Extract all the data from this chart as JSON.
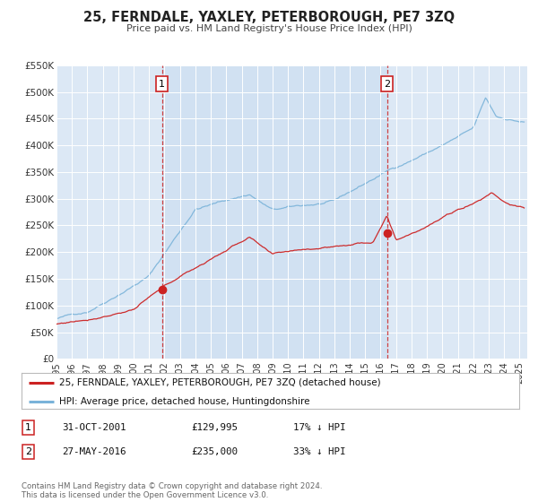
{
  "title": "25, FERNDALE, YAXLEY, PETERBOROUGH, PE7 3ZQ",
  "subtitle": "Price paid vs. HM Land Registry's House Price Index (HPI)",
  "hpi_color": "#7ab3d9",
  "price_color": "#cc2222",
  "vline_color": "#cc2222",
  "plot_bg": "#dce8f5",
  "fig_bg": "#ffffff",
  "ylim": [
    0,
    550000
  ],
  "yticks": [
    0,
    50000,
    100000,
    150000,
    200000,
    250000,
    300000,
    350000,
    400000,
    450000,
    500000,
    550000
  ],
  "ytick_labels": [
    "£0",
    "£50K",
    "£100K",
    "£150K",
    "£200K",
    "£250K",
    "£300K",
    "£350K",
    "£400K",
    "£450K",
    "£500K",
    "£550K"
  ],
  "xlim_start": 1995.0,
  "xlim_end": 2025.5,
  "marker1_x": 2001.83,
  "marker1_y": 129995,
  "marker2_x": 2016.41,
  "marker2_y": 235000,
  "legend_line1": "25, FERNDALE, YAXLEY, PETERBOROUGH, PE7 3ZQ (detached house)",
  "legend_line2": "HPI: Average price, detached house, Huntingdonshire",
  "table_row1": [
    "1",
    "31-OCT-2001",
    "£129,995",
    "17% ↓ HPI"
  ],
  "table_row2": [
    "2",
    "27-MAY-2016",
    "£235,000",
    "33% ↓ HPI"
  ],
  "footer": "Contains HM Land Registry data © Crown copyright and database right 2024.\nThis data is licensed under the Open Government Licence v3.0.",
  "xlabel_years": [
    1995,
    1996,
    1997,
    1998,
    1999,
    2000,
    2001,
    2002,
    2003,
    2004,
    2005,
    2006,
    2007,
    2008,
    2009,
    2010,
    2011,
    2012,
    2013,
    2014,
    2015,
    2016,
    2017,
    2018,
    2019,
    2020,
    2021,
    2022,
    2023,
    2024,
    2025
  ]
}
